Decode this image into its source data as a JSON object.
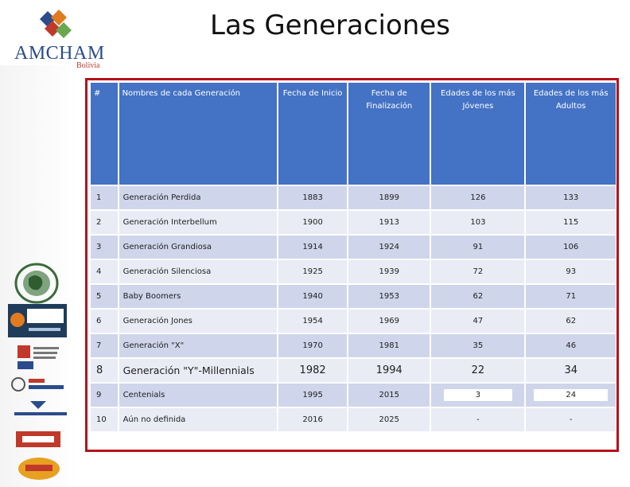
{
  "header": {
    "title": "Las Generaciones",
    "logo_name": "AMCHAM",
    "logo_sub": "Bolivia"
  },
  "colors": {
    "header_blue": "#4472c4",
    "row_dark": "#cfd5ea",
    "row_light": "#e9ebf5",
    "frame_red": "#b5121b"
  },
  "table": {
    "columns": [
      "#",
      "Nombres de cada Generación",
      "Fecha de  Inicio",
      "Fecha de Finalización",
      "Edades de los más Jóvenes",
      "Edades de los más Adultos"
    ],
    "rows": [
      [
        "1",
        "Generación Perdida",
        "1883",
        "1899",
        "126",
        "133"
      ],
      [
        "2",
        "Generación Interbellum",
        "1900",
        "1913",
        "103",
        "115"
      ],
      [
        "3",
        "Generación Grandiosa",
        "1914",
        "1924",
        "91",
        "106"
      ],
      [
        "4",
        "Generación Silenciosa",
        "1925",
        "1939",
        "72",
        "93"
      ],
      [
        "5",
        "Baby Boomers",
        "1940",
        "1953",
        "62",
        "71"
      ],
      [
        "6",
        "Generación Jones",
        "1954",
        "1969",
        "47",
        "62"
      ],
      [
        "7",
        "Generación \"X\"",
        "1970",
        "1981",
        "35",
        "46"
      ],
      [
        "8",
        "Generación \"Y\"-Millennials",
        "1982",
        "1994",
        "22",
        "34"
      ],
      [
        "9",
        "Centenials",
        "1995",
        "2015",
        "3",
        "24"
      ],
      [
        "10",
        "Aún no definida",
        "2016",
        "2025",
        "-",
        "-"
      ]
    ]
  },
  "sidebar_logos": [
    "globe-seal-icon",
    "babc-logo",
    "ceci-logo",
    "red-consulting-logo",
    "bolivian-logo",
    "mlemi-logo",
    "bolivian-research-group-logo"
  ]
}
